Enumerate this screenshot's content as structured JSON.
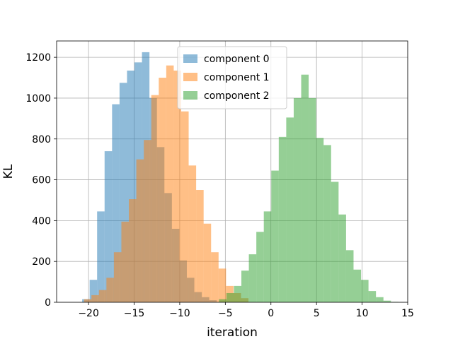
{
  "chart_data": {
    "type": "bar",
    "xlabel": "iteration",
    "ylabel": "KL",
    "xlim": [
      -23.5,
      15
    ],
    "ylim": [
      0,
      1280
    ],
    "xticks": [
      -20,
      -15,
      -10,
      -5,
      0,
      5,
      10,
      15
    ],
    "yticks": [
      0,
      200,
      400,
      600,
      800,
      1000,
      1200
    ],
    "grid": true,
    "legend_position": "top-center",
    "series": [
      {
        "name": "component 0",
        "color": "#1f77b4",
        "opacity": 0.5,
        "bin_start": -20.7,
        "bin_width": 0.82,
        "counts": [
          15,
          110,
          445,
          740,
          970,
          1075,
          1135,
          1175,
          1225,
          1000,
          760,
          535,
          360,
          205,
          120,
          50,
          25,
          10
        ]
      },
      {
        "name": "component 1",
        "color": "#ff7f0e",
        "opacity": 0.5,
        "bin_start": -20.5,
        "bin_width": 0.82,
        "counts": [
          15,
          35,
          60,
          120,
          245,
          395,
          505,
          700,
          795,
          1015,
          1100,
          1160,
          1135,
          935,
          670,
          550,
          385,
          245,
          165,
          80,
          45,
          20
        ]
      },
      {
        "name": "component 2",
        "color": "#2ca02c",
        "opacity": 0.5,
        "bin_start": -5.7,
        "bin_width": 0.82,
        "counts": [
          15,
          45,
          80,
          155,
          235,
          345,
          445,
          645,
          810,
          905,
          1000,
          1115,
          1000,
          805,
          770,
          590,
          430,
          255,
          160,
          110,
          55,
          25,
          8,
          2
        ]
      }
    ]
  }
}
